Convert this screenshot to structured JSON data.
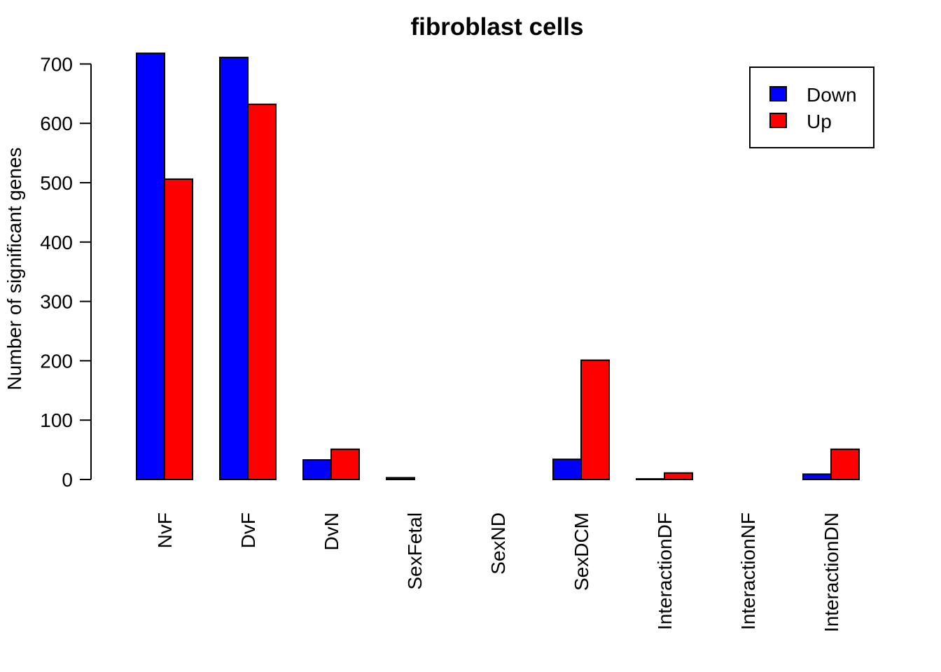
{
  "chart_data": {
    "type": "bar",
    "title": "fibroblast cells",
    "xlabel": "",
    "ylabel": "Number of significant genes",
    "ylim": [
      0,
      720
    ],
    "yticks": [
      0,
      100,
      200,
      300,
      400,
      500,
      600,
      700
    ],
    "categories": [
      "NvF",
      "DvF",
      "DvN",
      "SexFetal",
      "SexND",
      "SexDCM",
      "InteractionDF",
      "InteractionNF",
      "InteractionDN"
    ],
    "series": [
      {
        "name": "Down",
        "color": "#0000ff",
        "values": [
          718,
          711,
          33,
          3,
          0,
          34,
          1,
          0,
          9
        ]
      },
      {
        "name": "Up",
        "color": "#ff0000",
        "values": [
          506,
          632,
          51,
          0,
          0,
          201,
          11,
          0,
          51
        ]
      }
    ],
    "legend_position": "top-right"
  }
}
